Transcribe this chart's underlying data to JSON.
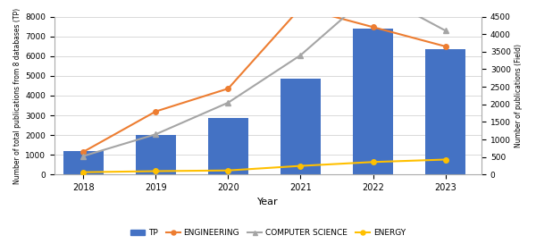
{
  "years": [
    2018,
    2019,
    2020,
    2021,
    2022,
    2023
  ],
  "TP": [
    1200,
    2000,
    2850,
    4850,
    7400,
    6350
  ],
  "engineering": [
    650,
    1800,
    2450,
    4750,
    4200,
    3650
  ],
  "computer_science": [
    530,
    1150,
    2050,
    3400,
    5200,
    4100
  ],
  "energy": [
    70,
    100,
    120,
    250,
    360,
    430
  ],
  "bar_color": "#4472C4",
  "engineering_color": "#ED7D31",
  "cs_color": "#A5A5A5",
  "energy_color": "#FFC000",
  "ylabel_left": "Number of total publications from 8 databases (TP)",
  "ylabel_right": "Number of publications (Field)",
  "xlabel": "Year",
  "ylim_left": [
    0,
    8000
  ],
  "ylim_right": [
    0,
    4500
  ],
  "yticks_left": [
    0,
    1000,
    2000,
    3000,
    4000,
    5000,
    6000,
    7000,
    8000
  ],
  "yticks_right": [
    0,
    500,
    1000,
    1500,
    2000,
    2500,
    3000,
    3500,
    4000,
    4500
  ],
  "legend_labels": [
    "TP",
    "ENGINEERING",
    "COMPUTER SCIENCE",
    "ENERGY"
  ],
  "background_color": "#FFFFFF",
  "grid_color": "#D3D3D3"
}
